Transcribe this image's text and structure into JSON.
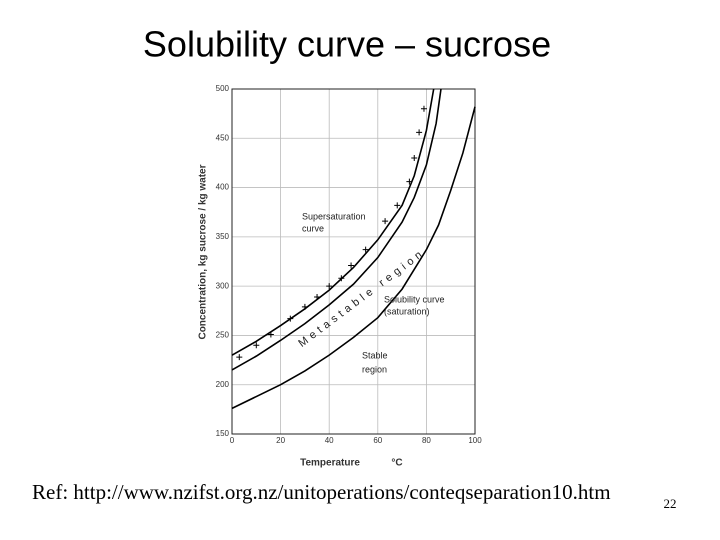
{
  "title": "Solubility curve – sucrose",
  "reference": "Ref: http://www.nzifst.org.nz/unitoperations/conteqseparation10.htm",
  "page_number": "22",
  "chart_data": {
    "type": "line",
    "x_label": "Temperature",
    "x_unit": "°C",
    "y_label": "Concentration, kg sucrose / kg water",
    "xlim": [
      0,
      100
    ],
    "xticks": [
      0,
      20,
      40,
      60,
      80,
      100
    ],
    "ylim": [
      150,
      500
    ],
    "yticks": [
      150,
      200,
      250,
      300,
      350,
      400,
      450,
      500
    ],
    "grid": true,
    "series": [
      {
        "name": "Supersaturation curve",
        "color": "#000000",
        "x": [
          0,
          10,
          20,
          30,
          40,
          50,
          60,
          70,
          75,
          80,
          83
        ],
        "values": [
          230,
          244,
          260,
          277,
          296,
          319,
          347,
          382,
          412,
          458,
          500
        ]
      },
      {
        "color": "#000000",
        "x": [
          0,
          10,
          20,
          30,
          40,
          50,
          60,
          70,
          75,
          80,
          84,
          86
        ],
        "values": [
          215,
          229,
          245,
          262,
          281,
          302,
          329,
          365,
          390,
          423,
          465,
          500
        ]
      },
      {
        "name": "Solubility curve (saturation)",
        "color": "#000000",
        "x": [
          0,
          10,
          20,
          30,
          40,
          50,
          60,
          70,
          80,
          85,
          90,
          95,
          100
        ],
        "values": [
          176,
          188,
          200,
          214,
          230,
          248,
          268,
          297,
          337,
          362,
          397,
          435,
          482
        ]
      }
    ],
    "points": {
      "x": [
        3,
        10,
        16,
        24,
        30,
        35,
        40,
        45,
        49,
        55,
        63,
        68,
        73,
        75,
        77,
        79
      ],
      "values": [
        228,
        240,
        251,
        267,
        279,
        289,
        300,
        308,
        321,
        337,
        366,
        382,
        406,
        430,
        456,
        480
      ]
    },
    "annotations": [
      "Supersaturation",
      "curve",
      "Metastable region",
      "Solubility curve",
      "(saturation)",
      "Stable",
      "region"
    ]
  }
}
